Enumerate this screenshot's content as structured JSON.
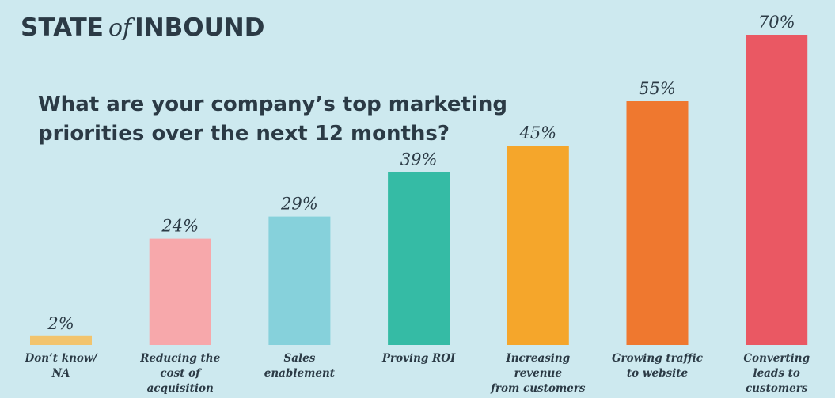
{
  "chart_data": {
    "type": "bar",
    "logo": [
      "STATE",
      "of",
      "INBOUND"
    ],
    "title": [
      "What are your company’s top marketing",
      "priorities over the next 12 months?"
    ],
    "categories": [
      [
        "Don’t know/",
        "NA"
      ],
      [
        "Reducing the",
        "cost of",
        "acquisition"
      ],
      [
        "Sales",
        "enablement"
      ],
      [
        "Proving ROI"
      ],
      [
        "Increasing",
        "revenue",
        "from customers"
      ],
      [
        "Growing traffic",
        "to website"
      ],
      [
        "Converting",
        "leads to",
        "customers"
      ]
    ],
    "values": [
      2,
      24,
      29,
      39,
      45,
      55,
      70
    ],
    "value_labels": [
      "2%",
      "24%",
      "29%",
      "39%",
      "45%",
      "55%",
      "70%"
    ],
    "colors": [
      "#f2c46d",
      "#f7a8ab",
      "#86d1db",
      "#35bba5",
      "#f5a62b",
      "#ef782f",
      "#ea5863"
    ]
  }
}
